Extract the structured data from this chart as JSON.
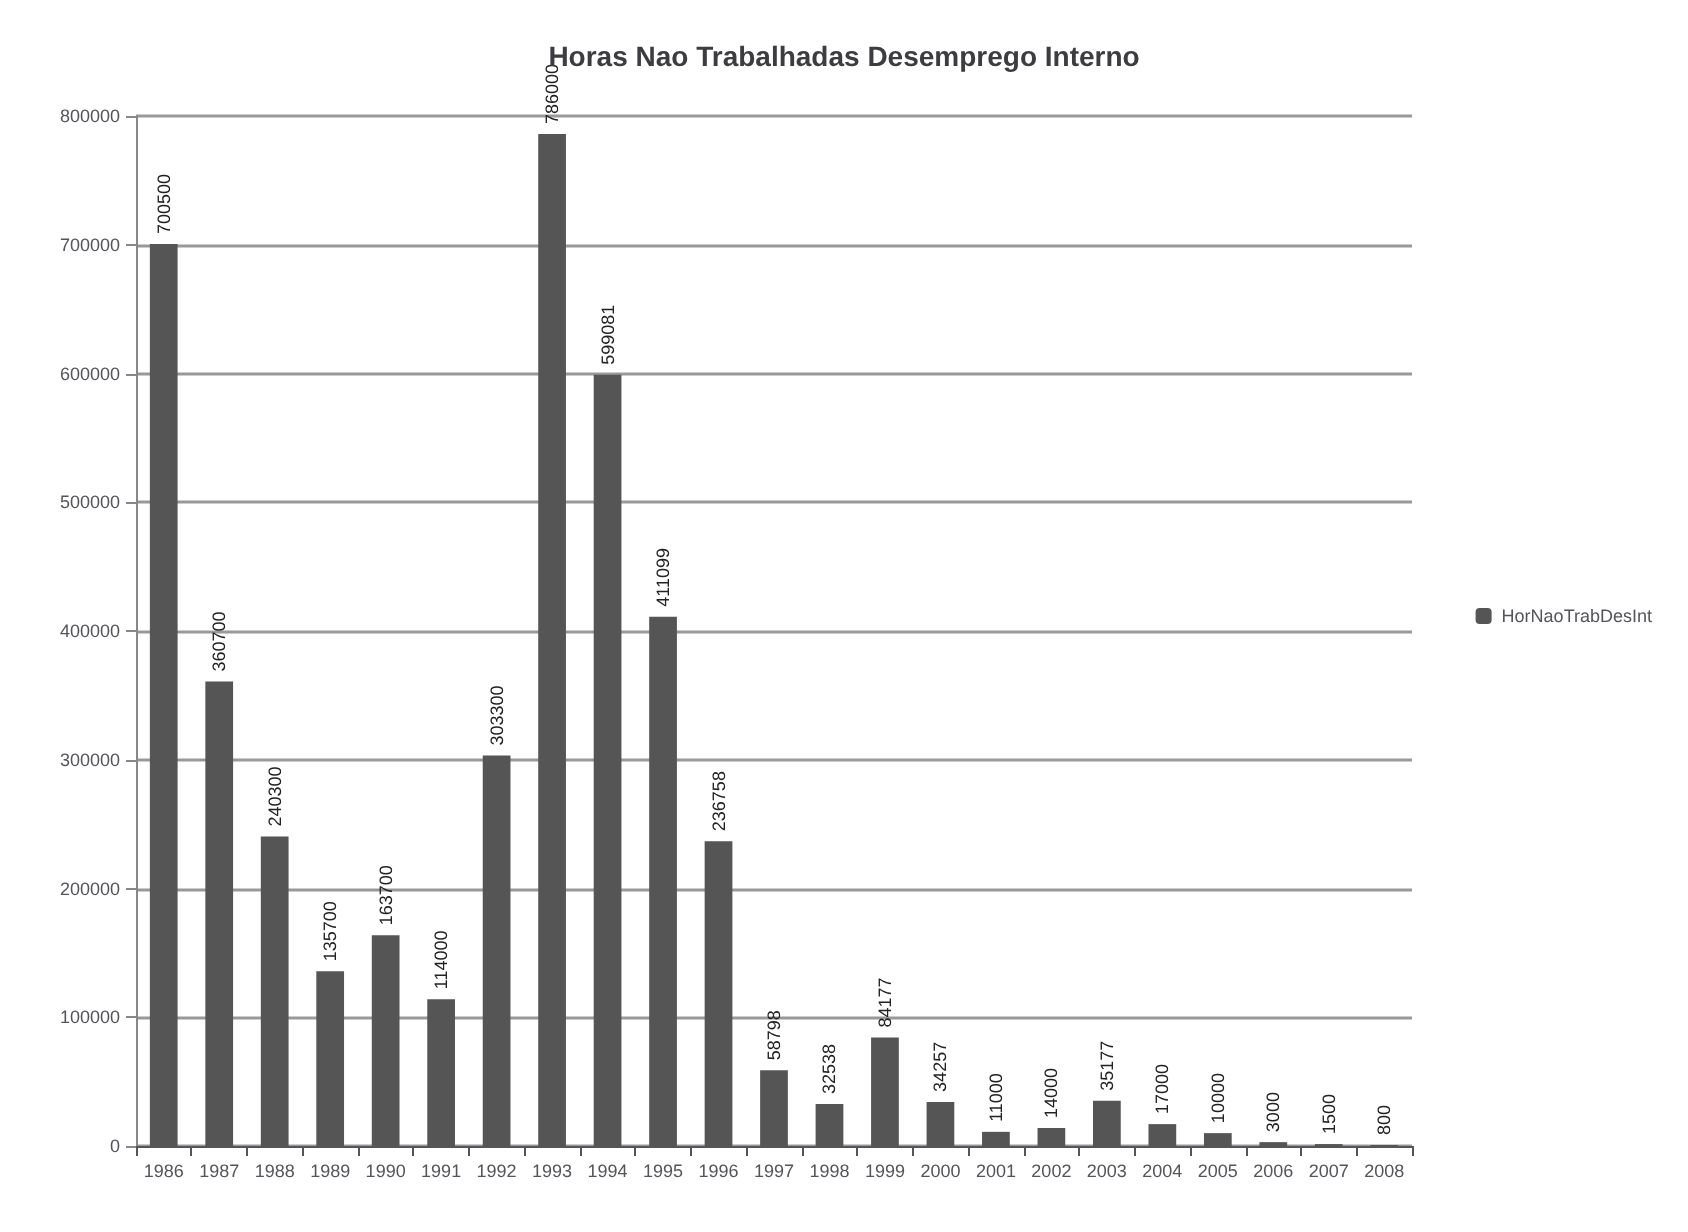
{
  "chart_data": {
    "type": "bar",
    "title": "Horas Nao Trabalhadas Desemprego Interno",
    "categories": [
      "1986",
      "1987",
      "1988",
      "1989",
      "1990",
      "1991",
      "1992",
      "1993",
      "1994",
      "1995",
      "1996",
      "1997",
      "1998",
      "1999",
      "2000",
      "2001",
      "2002",
      "2003",
      "2004",
      "2005",
      "2006",
      "2007",
      "2008"
    ],
    "series": [
      {
        "name": "HorNaoTrabDesInt",
        "color": "#555555",
        "values": [
          700500,
          360700,
          240300,
          135700,
          163700,
          114000,
          303300,
          786000,
          599081,
          411099,
          236758,
          58798,
          32538,
          84177,
          34257,
          11000,
          14000,
          35177,
          17000,
          10000,
          3000,
          1500,
          800
        ]
      }
    ],
    "ylim": [
      0,
      800000
    ],
    "yticks": [
      0,
      100000,
      200000,
      300000,
      400000,
      500000,
      600000,
      700000,
      800000
    ],
    "grid": "y",
    "legend": "right",
    "data_labels": true
  }
}
